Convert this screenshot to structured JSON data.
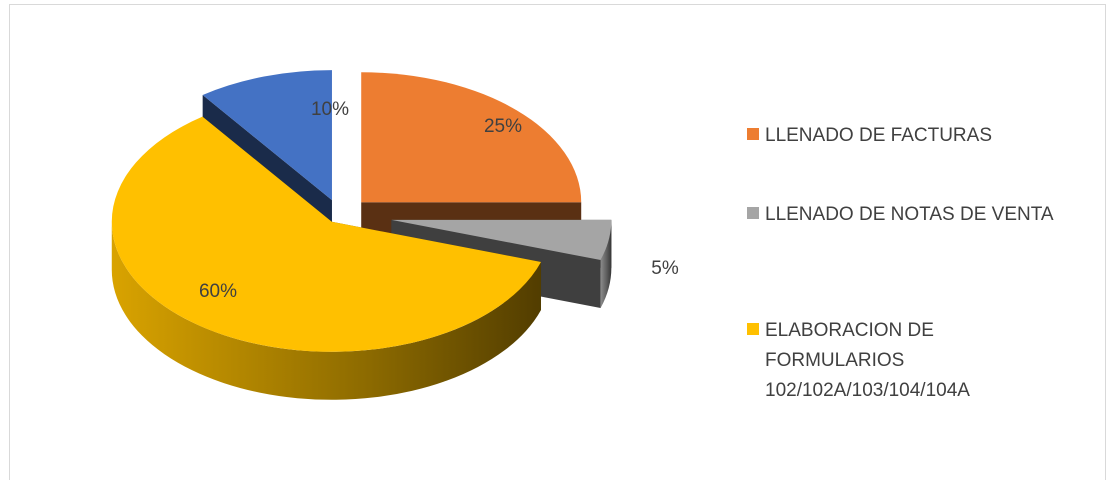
{
  "chart_data": {
    "type": "pie",
    "categories": [
      "LLENADO DE FACTURAS",
      "LLENADO DE NOTAS DE VENTA",
      "ELABORACION DE FORMULARIOS 102/102A/103/104/104A",
      ""
    ],
    "values": [
      25,
      5,
      60,
      10
    ],
    "labels": [
      "25%",
      "5%",
      "60%",
      "10%"
    ],
    "colors": [
      "#ed7d31",
      "#a5a5a5",
      "#ffc000",
      "#4472c4"
    ],
    "exploded": true,
    "style": "3d",
    "legend": {
      "position": "right",
      "entries": [
        {
          "label": "LLENADO DE FACTURAS",
          "color": "#ed7d31"
        },
        {
          "label": "LLENADO DE NOTAS DE VENTA",
          "color": "#a5a5a5"
        },
        {
          "label": "ELABORACION DE FORMULARIOS 102/102A/103/104/104A",
          "color": "#ffc000"
        }
      ]
    }
  }
}
